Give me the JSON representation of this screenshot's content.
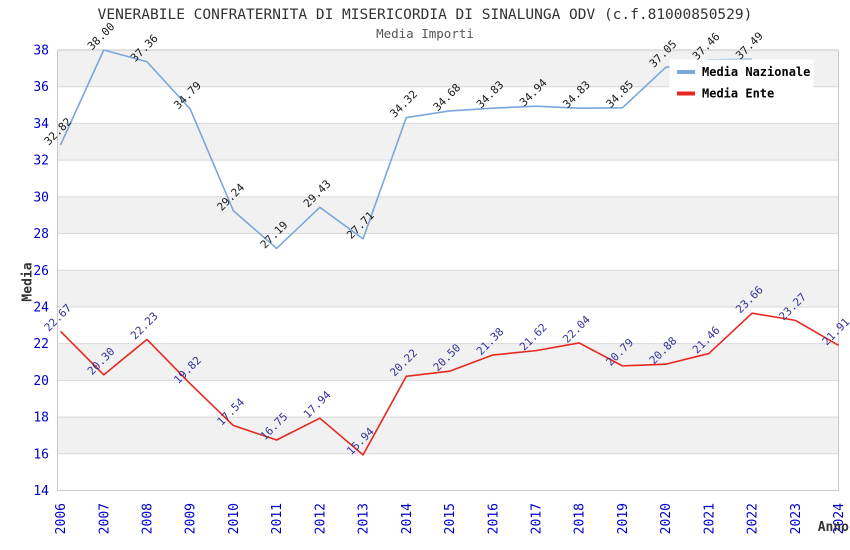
{
  "chart_data": {
    "type": "line",
    "title": "VENERABILE CONFRATERNITA DI MISERICORDIA DI SINALUNGA ODV (c.f.81000850529)",
    "subtitle": "Media Importi",
    "xlabel": "Anno",
    "ylabel": "Media",
    "ylim": [
      14,
      38
    ],
    "ytick_step": 2,
    "grid": "horizontal-gridlines-with-alternating-bands",
    "legend_position": "top-right",
    "x": [
      "2006",
      "2007",
      "2008",
      "2009",
      "2010",
      "2011",
      "2012",
      "2013",
      "2014",
      "2015",
      "2016",
      "2017",
      "2018",
      "2019",
      "2020",
      "2021",
      "2022",
      "2023",
      "2024"
    ],
    "series": [
      {
        "name": "Media Nazionale",
        "color": "#7aa7dc",
        "label_color": "#1a1a1a",
        "values": [
          32.82,
          38.0,
          37.36,
          34.79,
          29.24,
          27.19,
          29.43,
          27.71,
          34.32,
          34.68,
          34.83,
          34.94,
          34.83,
          34.85,
          37.05,
          37.46,
          37.49,
          null,
          null
        ]
      },
      {
        "name": "Media Ente",
        "color": "#e6281e",
        "label_color": "#333399",
        "values": [
          22.67,
          20.3,
          22.23,
          19.82,
          17.54,
          16.75,
          17.94,
          15.94,
          20.22,
          20.5,
          21.38,
          21.62,
          22.04,
          20.79,
          20.88,
          21.46,
          23.66,
          23.27,
          21.91
        ]
      }
    ],
    "style": {
      "tick_label_color": "#0000cc",
      "band_color": "#f1f1f1",
      "grid_color": "#d8d8d8",
      "plot_border_color": "#c8c8c8",
      "legend_background": "#ffffff",
      "value_label_decimals": 2
    }
  }
}
